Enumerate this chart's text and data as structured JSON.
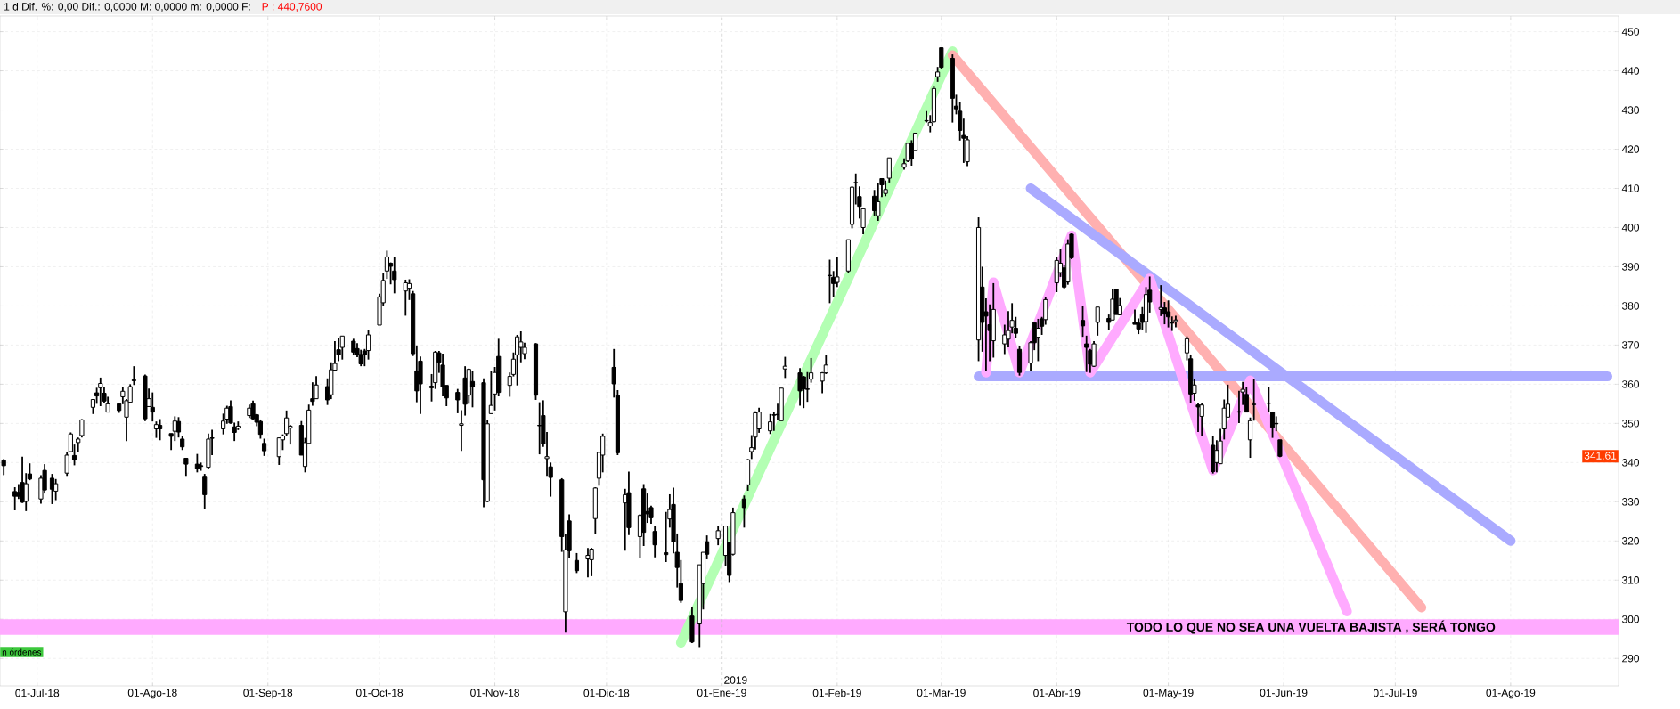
{
  "chart_data": {
    "type": "candlestick",
    "subtitle": "1 d Dif. %: 0,00 Dif.: 0,0000 M: 0,0000 m: 0,0000 F:",
    "x": [
      "2018-06-22",
      "2018-06-25",
      "2018-06-26",
      "2018-06-27",
      "2018-06-28",
      "2018-06-29",
      "2018-07-02",
      "2018-07-03",
      "2018-07-05",
      "2018-07-06",
      "2018-07-09",
      "2018-07-10",
      "2018-07-11",
      "2018-07-12",
      "2018-07-13",
      "2018-07-16",
      "2018-07-17",
      "2018-07-18",
      "2018-07-19",
      "2018-07-20",
      "2018-07-23",
      "2018-07-24",
      "2018-07-25",
      "2018-07-26",
      "2018-07-27",
      "2018-07-30",
      "2018-07-31",
      "2018-08-01",
      "2018-08-02",
      "2018-08-03",
      "2018-08-06",
      "2018-08-07",
      "2018-08-08",
      "2018-08-09",
      "2018-08-10",
      "2018-08-13",
      "2018-08-14",
      "2018-08-15",
      "2018-08-16",
      "2018-08-17",
      "2018-08-20",
      "2018-08-21",
      "2018-08-22",
      "2018-08-23",
      "2018-08-24",
      "2018-08-27",
      "2018-08-28",
      "2018-08-29",
      "2018-08-30",
      "2018-08-31",
      "2018-09-04",
      "2018-09-05",
      "2018-09-06",
      "2018-09-07",
      "2018-09-10",
      "2018-09-11",
      "2018-09-12",
      "2018-09-13",
      "2018-09-14",
      "2018-09-17",
      "2018-09-18",
      "2018-09-19",
      "2018-09-20",
      "2018-09-21",
      "2018-09-24",
      "2018-09-25",
      "2018-09-26",
      "2018-09-27",
      "2018-09-28",
      "2018-10-01",
      "2018-10-02",
      "2018-10-03",
      "2018-10-04",
      "2018-10-05",
      "2018-10-08",
      "2018-10-09",
      "2018-10-10",
      "2018-10-11",
      "2018-10-12",
      "2018-10-15",
      "2018-10-16",
      "2018-10-17",
      "2018-10-18",
      "2018-10-19",
      "2018-10-22",
      "2018-10-23",
      "2018-10-24",
      "2018-10-25",
      "2018-10-26",
      "2018-10-29",
      "2018-10-30",
      "2018-10-31",
      "2018-11-01",
      "2018-11-02",
      "2018-11-05",
      "2018-11-06",
      "2018-11-07",
      "2018-11-08",
      "2018-11-09",
      "2018-11-12",
      "2018-11-13",
      "2018-11-14",
      "2018-11-15",
      "2018-11-16",
      "2018-11-19",
      "2018-11-20",
      "2018-11-21",
      "2018-11-23",
      "2018-11-26",
      "2018-11-27",
      "2018-11-28",
      "2018-11-29",
      "2018-11-30",
      "2018-12-03",
      "2018-12-04",
      "2018-12-06",
      "2018-12-07",
      "2018-12-10",
      "2018-12-11",
      "2018-12-12",
      "2018-12-13",
      "2018-12-14",
      "2018-12-17",
      "2018-12-18",
      "2018-12-19",
      "2018-12-20",
      "2018-12-21",
      "2018-12-24",
      "2018-12-26",
      "2018-12-27",
      "2018-12-28",
      "2018-12-31",
      "2019-01-02",
      "2019-01-03",
      "2019-01-04",
      "2019-01-07",
      "2019-01-08",
      "2019-01-09",
      "2019-01-10",
      "2019-01-11",
      "2019-01-14",
      "2019-01-15",
      "2019-01-16",
      "2019-01-17",
      "2019-01-18",
      "2019-01-22",
      "2019-01-23",
      "2019-01-24",
      "2019-01-25",
      "2019-01-28",
      "2019-01-29",
      "2019-01-30",
      "2019-01-31",
      "2019-02-01",
      "2019-02-04",
      "2019-02-05",
      "2019-02-06",
      "2019-02-07",
      "2019-02-08",
      "2019-02-11",
      "2019-02-12",
      "2019-02-13",
      "2019-02-14",
      "2019-02-15",
      "2019-02-19",
      "2019-02-20",
      "2019-02-21",
      "2019-02-22",
      "2019-02-25",
      "2019-02-26",
      "2019-02-27",
      "2019-02-28",
      "2019-03-01",
      "2019-03-04",
      "2019-03-05",
      "2019-03-06",
      "2019-03-07",
      "2019-03-08",
      "2019-03-11",
      "2019-03-12",
      "2019-03-13",
      "2019-03-14",
      "2019-03-15",
      "2019-03-18",
      "2019-03-19",
      "2019-03-20",
      "2019-03-21",
      "2019-03-22",
      "2019-03-25",
      "2019-03-26",
      "2019-03-27",
      "2019-03-28",
      "2019-03-29",
      "2019-04-01",
      "2019-04-02",
      "2019-04-03",
      "2019-04-04",
      "2019-04-05",
      "2019-04-08",
      "2019-04-09",
      "2019-04-10",
      "2019-04-11",
      "2019-04-12",
      "2019-04-15",
      "2019-04-16",
      "2019-04-17",
      "2019-04-18",
      "2019-04-22",
      "2019-04-23",
      "2019-04-24",
      "2019-04-25",
      "2019-04-26",
      "2019-04-29",
      "2019-04-30",
      "2019-05-01",
      "2019-05-02",
      "2019-05-03",
      "2019-05-06",
      "2019-05-07",
      "2019-05-08",
      "2019-05-09",
      "2019-05-10",
      "2019-05-13",
      "2019-05-14",
      "2019-05-15",
      "2019-05-16",
      "2019-05-17",
      "2019-05-20",
      "2019-05-21",
      "2019-05-22",
      "2019-05-23",
      "2019-05-24",
      "2019-05-28",
      "2019-05-29",
      "2019-05-30",
      "2019-05-31"
    ],
    "ohlc": [
      [
        340.5,
        340.9,
        336.8,
        339.2
      ],
      [
        332.6,
        333.7,
        327.8,
        331.4
      ],
      [
        332.4,
        334.5,
        330.7,
        331.4
      ],
      [
        334.9,
        341.5,
        329.7,
        329.9
      ],
      [
        330.1,
        337.3,
        327.6,
        334.6
      ],
      [
        337.1,
        339.8,
        335.5,
        335.8
      ],
      [
        330.7,
        336.8,
        329.5,
        336.0
      ],
      [
        338.0,
        339.6,
        332.1,
        333.0
      ],
      [
        336.0,
        337.1,
        329.4,
        333.2
      ],
      [
        332.7,
        335.8,
        330.4,
        334.6
      ],
      [
        337.3,
        342.8,
        336.6,
        341.9
      ],
      [
        342.8,
        347.7,
        342.8,
        347.3
      ],
      [
        341.8,
        344.6,
        339.3,
        340.7
      ],
      [
        345.1,
        346.4,
        342.8,
        346.0
      ],
      [
        346.9,
        351.1,
        346.4,
        350.9
      ],
      [
        354.1,
        356.2,
        352.4,
        356.1
      ],
      [
        357.8,
        359.1,
        355.0,
        357.0
      ],
      [
        359.1,
        361.7,
        354.4,
        360.2
      ],
      [
        357.7,
        359.4,
        355.3,
        355.7
      ],
      [
        352.9,
        356.8,
        352.9,
        355.0
      ],
      [
        355.0,
        355.0,
        352.7,
        353.3
      ],
      [
        356.8,
        359.4,
        354.9,
        358.2
      ],
      [
        351.6,
        356.2,
        345.5,
        355.8
      ],
      [
        355.4,
        360.0,
        355.4,
        359.4
      ],
      [
        361.1,
        364.6,
        359.8,
        360.9
      ],
      [
        362.1,
        362.5,
        350.6,
        351.2
      ],
      [
        354.3,
        358.9,
        354.3,
        356.3
      ],
      [
        354.1,
        357.9,
        350.5,
        352.9
      ],
      [
        348.6,
        350.5,
        346.3,
        349.7
      ],
      [
        349.5,
        351.1,
        345.7,
        348.6
      ],
      [
        347.4,
        347.4,
        343.2,
        346.7
      ],
      [
        348.0,
        351.8,
        345.5,
        350.6
      ],
      [
        350.5,
        351.6,
        346.4,
        347.8
      ],
      [
        346.0,
        346.7,
        343.2,
        344.0
      ],
      [
        341.1,
        341.1,
        336.6,
        339.6
      ],
      [
        339.6,
        342.2,
        337.5,
        338.5
      ],
      [
        339.2,
        340.0,
        337.9,
        339.0
      ],
      [
        336.5,
        337.1,
        328.1,
        331.8
      ],
      [
        338.8,
        347.4,
        338.5,
        346.0
      ],
      [
        346.3,
        348.4,
        341.9,
        346.2
      ],
      [
        348.6,
        352.5,
        347.2,
        350.6
      ],
      [
        351.1,
        354.5,
        349.9,
        353.9
      ],
      [
        354.3,
        355.9,
        349.9,
        350.1
      ],
      [
        349.1,
        350.2,
        345.5,
        347.7
      ],
      [
        348.8,
        350.5,
        348.3,
        349.3
      ],
      [
        352.0,
        354.8,
        351.4,
        353.9
      ],
      [
        355.0,
        355.8,
        351.0,
        351.2
      ],
      [
        352.2,
        352.4,
        349.3,
        350.3
      ],
      [
        350.5,
        351.0,
        346.1,
        347.2
      ],
      [
        344.9,
        346.1,
        341.7,
        343.0
      ],
      [
        341.5,
        346.4,
        339.4,
        346.3
      ],
      [
        345.8,
        347.2,
        343.2,
        346.8
      ],
      [
        347.4,
        353.3,
        346.7,
        351.4
      ],
      [
        348.8,
        349.6,
        344.6,
        349.3
      ],
      [
        349.5,
        350.6,
        341.9,
        341.9
      ],
      [
        339.0,
        346.3,
        337.5,
        345.1
      ],
      [
        344.9,
        354.8,
        344.9,
        353.4
      ],
      [
        356.3,
        360.5,
        354.5,
        355.6
      ],
      [
        356.3,
        362.1,
        356.3,
        359.8
      ],
      [
        359.4,
        361.5,
        354.7,
        356.0
      ],
      [
        357.3,
        365.6,
        356.2,
        363.7
      ],
      [
        363.6,
        371.0,
        363.4,
        365.3
      ],
      [
        368.8,
        371.7,
        365.9,
        367.6
      ],
      [
        369.4,
        372.3,
        366.3,
        372.3
      ],
      [
        371.0,
        371.6,
        367.5,
        368.2
      ],
      [
        369.1,
        370.5,
        366.9,
        367.5
      ],
      [
        367.6,
        368.8,
        364.6,
        365.2
      ],
      [
        368.5,
        369.0,
        364.6,
        367.5
      ],
      [
        368.6,
        373.9,
        366.3,
        372.6
      ],
      [
        375.1,
        383.1,
        375.1,
        382.3
      ],
      [
        380.8,
        388.3,
        380.0,
        386.5
      ],
      [
        388.9,
        394.1,
        386.9,
        392.5
      ],
      [
        390.9,
        391.1,
        385.5,
        390.1
      ],
      [
        388.9,
        392.5,
        383.2,
        386.7
      ],
      [
        383.8,
        386.7,
        377.5,
        385.9
      ],
      [
        384.5,
        386.8,
        381.5,
        385.7
      ],
      [
        383.1,
        383.8,
        367.2,
        367.8
      ],
      [
        363.4,
        369.9,
        355.4,
        358.3
      ],
      [
        365.9,
        367.1,
        352.4,
        360.1
      ],
      [
        359.5,
        362.6,
        355.6,
        359.1
      ],
      [
        360.4,
        368.5,
        358.8,
        368.2
      ],
      [
        368.0,
        368.5,
        362.9,
        365.6
      ],
      [
        364.9,
        367.8,
        356.9,
        359.4
      ],
      [
        359.7,
        359.7,
        354.4,
        356.5
      ],
      [
        357.9,
        358.8,
        352.6,
        356.0
      ],
      [
        349.5,
        353.4,
        343.0,
        349.9
      ],
      [
        361.6,
        364.6,
        352.0,
        354.9
      ],
      [
        357.2,
        364.0,
        355.0,
        363.8
      ],
      [
        360.7,
        363.3,
        354.1,
        359.4
      ],
      [
        360.4,
        361.5,
        328.6,
        335.6
      ],
      [
        330.1,
        350.8,
        329.9,
        349.9
      ],
      [
        352.5,
        363.3,
        352.5,
        354.6
      ],
      [
        357.5,
        364.4,
        353.3,
        363.0
      ],
      [
        367.1,
        371.6,
        356.9,
        357.9
      ],
      [
        359.7,
        363.0,
        356.8,
        362.0
      ],
      [
        362.5,
        368.1,
        362.0,
        366.4
      ],
      [
        367.5,
        372.6,
        359.7,
        372.1
      ],
      [
        369.4,
        373.5,
        365.6,
        370.8
      ],
      [
        367.8,
        370.6,
        366.4,
        369.4
      ],
      [
        370.3,
        370.5,
        356.0,
        357.2
      ],
      [
        349.5,
        355.4,
        342.1,
        349.4
      ],
      [
        352.0,
        355.9,
        344.0,
        344.8
      ],
      [
        341.0,
        347.8,
        336.6,
        341.5
      ],
      [
        338.9,
        340.0,
        331.3,
        336.2
      ],
      [
        335.6,
        336.0,
        317.2,
        321.1
      ],
      [
        301.9,
        321.7,
        296.6,
        317.7
      ],
      [
        325.1,
        326.8,
        315.6,
        317.5
      ],
      [
        315.0,
        316.9,
        311.8,
        312.4
      ],
      [
        315.4,
        318.2,
        310.7,
        316.3
      ],
      [
        315.2,
        318.2,
        311.0,
        317.9
      ],
      [
        325.7,
        333.7,
        321.7,
        333.5
      ],
      [
        336.0,
        342.8,
        334.1,
        342.6
      ],
      [
        341.9,
        347.4,
        337.5,
        346.7
      ],
      [
        364.3,
        369.0,
        356.6,
        360.1
      ],
      [
        357.1,
        358.5,
        341.9,
        342.5
      ],
      [
        329.7,
        333.3,
        317.5,
        331.8
      ],
      [
        332.3,
        337.7,
        321.5,
        323.4
      ],
      [
        321.1,
        326.8,
        315.6,
        326.5
      ],
      [
        333.3,
        334.5,
        318.7,
        322.2
      ],
      [
        327.5,
        332.1,
        324.6,
        326.9
      ],
      [
        328.5,
        329.0,
        324.4,
        325.9
      ],
      [
        322.4,
        323.9,
        315.8,
        319.0
      ],
      [
        317.0,
        327.4,
        314.6,
        316.5
      ],
      [
        325.6,
        331.9,
        323.4,
        328.0
      ],
      [
        329.3,
        333.6,
        316.8,
        319.8
      ],
      [
        317.1,
        321.9,
        308.1,
        313.2
      ],
      [
        309.1,
        315.1,
        304.2,
        304.8
      ],
      [
        300.8,
        303.0,
        293.9,
        294.2
      ],
      [
        298.8,
        313.9,
        292.9,
        313.9
      ],
      [
        309.1,
        317.1,
        302.5,
        317.1
      ],
      [
        319.8,
        321.4,
        315.3,
        316.6
      ],
      [
        320.6,
        323.8,
        318.9,
        322.6
      ],
      [
        316.3,
        323.8,
        313.7,
        323.8
      ],
      [
        319.5,
        319.8,
        309.5,
        311.2
      ],
      [
        316.6,
        328.5,
        316.3,
        327.2
      ],
      [
        330.7,
        331.6,
        323.4,
        328.5
      ],
      [
        334.3,
        340.9,
        332.8,
        340.7
      ],
      [
        342.8,
        347.0,
        340.9,
        343.8
      ],
      [
        346.5,
        353.1,
        343.3,
        352.7
      ],
      [
        348.6,
        354.0,
        347.6,
        352.9
      ],
      [
        348.1,
        352.4,
        347.3,
        350.4
      ],
      [
        352.2,
        352.9,
        348.1,
        352.1
      ],
      [
        352.3,
        355.0,
        350.9,
        352.2
      ],
      [
        350.7,
        359.0,
        350.7,
        359.0
      ],
      [
        363.9,
        367.0,
        361.6,
        364.6
      ],
      [
        362.9,
        364.1,
        354.5,
        358.3
      ],
      [
        361.9,
        362.1,
        353.9,
        358.8
      ],
      [
        358.8,
        363.1,
        355.5,
        358.7
      ],
      [
        361.3,
        366.7,
        360.4,
        362.9
      ],
      [
        360.8,
        363.1,
        357.7,
        362.9
      ],
      [
        362.9,
        367.5,
        362.6,
        364.9
      ],
      [
        387.8,
        391.8,
        380.7,
        387.7
      ],
      [
        387.3,
        388.9,
        382.3,
        385.7
      ],
      [
        386.0,
        392.6,
        384.8,
        387.4
      ],
      [
        388.9,
        396.9,
        388.3,
        396.9
      ],
      [
        400.8,
        410.5,
        399.8,
        410.3
      ],
      [
        411.5,
        413.8,
        405.9,
        411.4
      ],
      [
        407.9,
        410.5,
        402.3,
        405.4
      ],
      [
        400.0,
        404.8,
        398.3,
        404.8
      ],
      [
        408.0,
        409.6,
        403.0,
        404.3
      ],
      [
        403.0,
        411.3,
        401.7,
        406.6
      ],
      [
        412.5,
        412.5,
        407.8,
        410.9
      ],
      [
        408.7,
        412.0,
        408.0,
        409.7
      ],
      [
        412.6,
        417.8,
        411.5,
        417.8
      ],
      [
        415.4,
        417.7,
        414.8,
        416.3
      ],
      [
        417.0,
        421.5,
        416.7,
        421.5
      ],
      [
        421.6,
        422.3,
        415.8,
        417.6
      ],
      [
        419.7,
        424.1,
        419.7,
        424.1
      ],
      [
        427.3,
        429.7,
        426.8,
        427.2
      ],
      [
        425.9,
        428.7,
        424.3,
        426.8
      ],
      [
        427.0,
        436.1,
        426.8,
        435.5
      ],
      [
        438.5,
        441.0,
        437.2,
        439.7
      ],
      [
        445.9,
        445.9,
        440.6,
        440.9
      ],
      [
        443.2,
        444.2,
        426.8,
        433.0
      ],
      [
        431.0,
        433.9,
        428.9,
        430.3
      ],
      [
        429.7,
        432.0,
        422.2,
        424.8
      ],
      [
        423.5,
        427.8,
        416.5,
        422.8
      ],
      [
        416.8,
        423.3,
        415.7,
        422.4
      ],
      [
        371.3,
        402.6,
        365.9,
        400.0
      ],
      [
        384.8,
        390.0,
        368.3,
        375.8
      ],
      [
        378.5,
        381.9,
        363.5,
        377.4
      ],
      [
        375.2,
        380.4,
        365.9,
        373.7
      ],
      [
        371.1,
        385.8,
        366.8,
        379.1
      ],
      [
        370.3,
        375.2,
        367.7,
        372.6
      ],
      [
        371.5,
        378.7,
        369.4,
        373.7
      ],
      [
        374.6,
        380.7,
        373.0,
        376.3
      ],
      [
        374.3,
        377.2,
        371.7,
        373.0
      ],
      [
        368.9,
        369.7,
        362.2,
        363.0
      ],
      [
        365.4,
        371.0,
        363.5,
        370.6
      ],
      [
        375.7,
        375.7,
        368.7,
        370.6
      ],
      [
        372.0,
        376.7,
        365.9,
        374.3
      ],
      [
        376.7,
        377.2,
        372.6,
        374.8
      ],
      [
        376.5,
        382.2,
        375.2,
        381.6
      ],
      [
        385.9,
        392.6,
        383.5,
        391.6
      ],
      [
        388.5,
        394.6,
        387.4,
        390.9
      ],
      [
        389.7,
        390.4,
        384.3,
        384.8
      ],
      [
        386.1,
        397.0,
        385.4,
        395.8
      ],
      [
        398.3,
        398.5,
        391.9,
        392.3
      ],
      [
        376.3,
        380.0,
        372.1,
        374.9
      ],
      [
        370.3,
        372.4,
        363.1,
        369.4
      ],
      [
        368.6,
        369.0,
        362.9,
        365.1
      ],
      [
        364.6,
        371.0,
        364.4,
        370.3
      ],
      [
        375.8,
        379.7,
        372.4,
        379.7
      ],
      [
        376.8,
        377.8,
        373.9,
        375.8
      ],
      [
        376.4,
        384.4,
        376.4,
        381.7
      ],
      [
        384.3,
        384.3,
        377.8,
        377.8
      ],
      [
        377.7,
        382.0,
        377.7,
        380.1
      ],
      [
        375.8,
        379.1,
        375.3,
        375.3
      ],
      [
        375.6,
        376.8,
        372.8,
        374.1
      ],
      [
        377.8,
        379.7,
        373.9,
        375.8
      ],
      [
        376.0,
        384.8,
        373.1,
        382.9
      ],
      [
        384.0,
        387.5,
        378.3,
        381.0
      ],
      [
        379.1,
        385.3,
        377.4,
        379.6
      ],
      [
        379.5,
        381.0,
        375.3,
        377.9
      ],
      [
        378.5,
        381.4,
        374.5,
        377.2
      ],
      [
        375.7,
        377.3,
        373.6,
        375.6
      ],
      [
        376.0,
        377.5,
        374.5,
        376.4
      ],
      [
        368.0,
        372.2,
        366.1,
        371.6
      ],
      [
        366.5,
        367.6,
        355.3,
        357.5
      ],
      [
        357.7,
        361.4,
        355.8,
        359.8
      ],
      [
        354.7,
        355.3,
        347.8,
        354.2
      ],
      [
        351.8,
        355.3,
        346.7,
        354.7
      ],
      [
        344.4,
        346.7,
        337.2,
        337.7
      ],
      [
        340.0,
        345.7,
        337.5,
        343.1
      ],
      [
        339.7,
        348.6,
        339.7,
        345.5
      ],
      [
        348.6,
        356.1,
        345.9,
        353.9
      ],
      [
        351.6,
        359.9,
        351.6,
        354.9
      ],
      [
        353.0,
        358.3,
        350.1,
        352.9
      ],
      [
        358.0,
        360.6,
        354.7,
        358.7
      ],
      [
        357.4,
        359.3,
        352.9,
        352.9
      ],
      [
        345.8,
        351.5,
        341.2,
        350.7
      ],
      [
        354.9,
        361.3,
        350.7,
        354.8
      ],
      [
        355.1,
        359.3,
        352.8,
        355.2
      ],
      [
        352.8,
        352.8,
        346.3,
        349.0
      ],
      [
        350.0,
        351.8,
        348.0,
        349.9
      ],
      [
        345.8,
        345.8,
        341.4,
        341.61
      ]
    ],
    "series": [
      {
        "type": "line",
        "color": "#b3ffb3",
        "x": [
          "2018-12-21",
          "2019-03-04"
        ],
        "values": [
          294,
          445
        ]
      },
      {
        "type": "line",
        "color": "#ffb0b0",
        "x": [
          "2019-03-04",
          "2019-07-08"
        ],
        "values": [
          444,
          303
        ]
      },
      {
        "type": "line",
        "color": "#aaaaff",
        "x": [
          "2019-03-25",
          "2019-08-01"
        ],
        "values": [
          410,
          320
        ]
      },
      {
        "type": "line",
        "color": "#aaaaff",
        "x": [
          "2019-03-11",
          "2019-08-27"
        ],
        "values": [
          362,
          362
        ]
      },
      {
        "type": "line",
        "color": "#ffaaff",
        "x": [
          "2019-03-13",
          "2019-03-15",
          "2019-03-22",
          "2019-04-05",
          "2019-04-10",
          "2019-04-26",
          "2019-05-13",
          "2019-05-23",
          "2019-06-18"
        ],
        "values": [
          363,
          386,
          363,
          398,
          363,
          387,
          338,
          361,
          302
        ]
      }
    ],
    "xlim": [
      "2018-06-21",
      "2019-08-30"
    ],
    "xticks": [
      {
        "value": "2018-07-01",
        "label": "01-Jul-18"
      },
      {
        "value": "2018-08-01",
        "label": "01-Ago-18"
      },
      {
        "value": "2018-09-01",
        "label": "01-Sep-18"
      },
      {
        "value": "2018-10-01",
        "label": "01-Oct-18"
      },
      {
        "value": "2018-11-01",
        "label": "01-Nov-18"
      },
      {
        "value": "2018-12-01",
        "label": "01-Dic-18"
      },
      {
        "value": "2019-01-01",
        "label": "01-Ene-19"
      },
      {
        "value": "2019-02-01",
        "label": "01-Feb-19"
      },
      {
        "value": "2019-03-01",
        "label": "01-Mar-19"
      },
      {
        "value": "2019-04-01",
        "label": "01-Abr-19"
      },
      {
        "value": "2019-05-01",
        "label": "01-May-19"
      },
      {
        "value": "2019-06-01",
        "label": "01-Jun-19"
      },
      {
        "value": "2019-07-01",
        "label": "01-Jul-19"
      },
      {
        "value": "2019-08-01",
        "label": "01-Ago-19"
      }
    ],
    "ylim": [
      283,
      454
    ],
    "yticks": [
      290,
      300,
      310,
      320,
      330,
      340,
      350,
      360,
      370,
      380,
      390,
      400,
      410,
      420,
      430,
      440,
      450
    ],
    "grid": true,
    "ref_lines": [
      {
        "axis": "x",
        "value": "2019-01-01",
        "label": "2019",
        "color": "#bbbbbb",
        "line_style": "dashed"
      }
    ],
    "bands": [
      {
        "axis": "y",
        "from": 296,
        "to": 300,
        "label": "TODO LO QUE NO SEA UNA VUELTA BAJISTA , SERÁ TONGO",
        "color": "#ffaaff"
      }
    ],
    "annotations": [
      "P : 440,7600",
      {
        "text": "341,61",
        "y": 341.61
      },
      "n órdenes"
    ]
  }
}
